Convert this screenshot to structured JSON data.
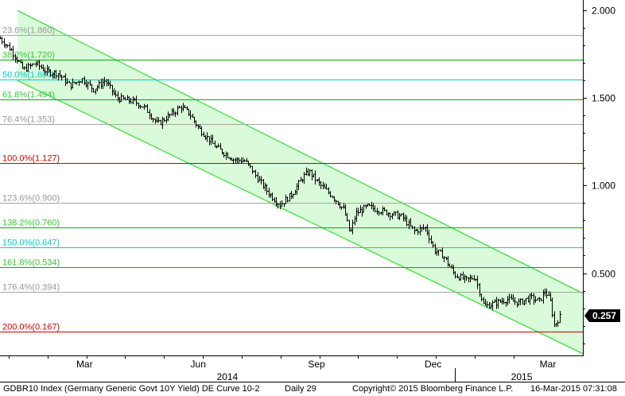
{
  "chart_data": {
    "type": "bar",
    "style": "ohlc-bars",
    "title": "",
    "xlabel": "",
    "ylabel": "",
    "ylim": [
      0.03,
      2.06
    ],
    "x_range": [
      0,
      1.0
    ],
    "y_ticks": [
      {
        "value": 2.0,
        "label": "2.000"
      },
      {
        "value": 1.5,
        "label": "1.500"
      },
      {
        "value": 1.0,
        "label": "1.000"
      },
      {
        "value": 0.5,
        "label": "0.500"
      }
    ],
    "last_price": {
      "value": 0.257,
      "label": "0.257"
    },
    "x_month_labels": [
      {
        "label": "Mar",
        "t": 0.145
      },
      {
        "label": "Jun",
        "t": 0.34
      },
      {
        "label": "Sep",
        "t": 0.543
      },
      {
        "label": "Dec",
        "t": 0.743
      },
      {
        "label": "Mar",
        "t": 0.94
      }
    ],
    "x_year_labels": [
      {
        "label": "2014",
        "t": 0.39
      },
      {
        "label": "2015",
        "t": 0.895
      }
    ],
    "year_separator_t": 0.78,
    "fib_levels": [
      {
        "label": "23.6%(1.860)",
        "value": 1.86,
        "color": "#a6a6a6",
        "text_color": "#999999"
      },
      {
        "label": "38.2%(1.720)",
        "value": 1.72,
        "color": "#00b000",
        "text_color": "#33cc33"
      },
      {
        "label": "50.0%(1.607)",
        "value": 1.607,
        "color": "#00d0d0",
        "text_color": "#00cccc"
      },
      {
        "label": "61.8%(1.494)",
        "value": 1.494,
        "color": "#00b000",
        "text_color": "#33cc33"
      },
      {
        "label": "76.4%(1.353)",
        "value": 1.353,
        "color": "#a6a6a6",
        "text_color": "#999999"
      },
      {
        "label": "100.0%(1.127)",
        "value": 1.127,
        "color": "#cc0000",
        "text_color": "#cc0000"
      },
      {
        "label": "123.6%(0.900)",
        "value": 0.9,
        "color": "#a6a6a6",
        "text_color": "#999999"
      },
      {
        "label": "138.2%(0.760)",
        "value": 0.76,
        "color": "#00b000",
        "text_color": "#33cc33"
      },
      {
        "label": "150.0%(0.647)",
        "value": 0.647,
        "color": "#00d0d0",
        "text_color": "#00cccc"
      },
      {
        "label": "161.8%(0.534)",
        "value": 0.534,
        "color": "#00b000",
        "text_color": "#33cc33"
      },
      {
        "label": "176.4%(0.394)",
        "value": 0.394,
        "color": "#a6a6a6",
        "text_color": "#999999"
      },
      {
        "label": "200.0%(0.167)",
        "value": 0.167,
        "color": "#cc0000",
        "text_color": "#cc0000"
      }
    ],
    "channel": {
      "upper": [
        {
          "t": 0.03,
          "y": 2.0
        },
        {
          "t": 1.0,
          "y": 0.385
        }
      ],
      "lower": [
        {
          "t": 0.03,
          "y": 1.6
        },
        {
          "t": 1.0,
          "y": 0.04
        }
      ],
      "line_color": "#33dd33",
      "fill_color": "#d9fbd9"
    },
    "series_anchors": [
      {
        "t": 0.0,
        "y": 1.84
      },
      {
        "t": 0.02,
        "y": 1.77
      },
      {
        "t": 0.04,
        "y": 1.66
      },
      {
        "t": 0.06,
        "y": 1.7
      },
      {
        "t": 0.08,
        "y": 1.65
      },
      {
        "t": 0.1,
        "y": 1.64
      },
      {
        "t": 0.12,
        "y": 1.57
      },
      {
        "t": 0.14,
        "y": 1.61
      },
      {
        "t": 0.16,
        "y": 1.55
      },
      {
        "t": 0.18,
        "y": 1.6
      },
      {
        "t": 0.2,
        "y": 1.5
      },
      {
        "t": 0.23,
        "y": 1.48
      },
      {
        "t": 0.25,
        "y": 1.44
      },
      {
        "t": 0.27,
        "y": 1.35
      },
      {
        "t": 0.29,
        "y": 1.4
      },
      {
        "t": 0.31,
        "y": 1.45
      },
      {
        "t": 0.325,
        "y": 1.41
      },
      {
        "t": 0.34,
        "y": 1.33
      },
      {
        "t": 0.37,
        "y": 1.22
      },
      {
        "t": 0.4,
        "y": 1.15
      },
      {
        "t": 0.42,
        "y": 1.14
      },
      {
        "t": 0.44,
        "y": 1.05
      },
      {
        "t": 0.46,
        "y": 0.96
      },
      {
        "t": 0.48,
        "y": 0.89
      },
      {
        "t": 0.5,
        "y": 0.95
      },
      {
        "t": 0.52,
        "y": 1.05
      },
      {
        "t": 0.53,
        "y": 1.08
      },
      {
        "t": 0.55,
        "y": 1.0
      },
      {
        "t": 0.57,
        "y": 0.94
      },
      {
        "t": 0.59,
        "y": 0.86
      },
      {
        "t": 0.6,
        "y": 0.72
      },
      {
        "t": 0.61,
        "y": 0.84
      },
      {
        "t": 0.63,
        "y": 0.88
      },
      {
        "t": 0.66,
        "y": 0.85
      },
      {
        "t": 0.69,
        "y": 0.82
      },
      {
        "t": 0.71,
        "y": 0.74
      },
      {
        "t": 0.73,
        "y": 0.76
      },
      {
        "t": 0.745,
        "y": 0.63
      },
      {
        "t": 0.76,
        "y": 0.6
      },
      {
        "t": 0.78,
        "y": 0.49
      },
      {
        "t": 0.8,
        "y": 0.46
      },
      {
        "t": 0.815,
        "y": 0.48
      },
      {
        "t": 0.83,
        "y": 0.31
      },
      {
        "t": 0.85,
        "y": 0.33
      },
      {
        "t": 0.87,
        "y": 0.35
      },
      {
        "t": 0.89,
        "y": 0.33
      },
      {
        "t": 0.91,
        "y": 0.36
      },
      {
        "t": 0.925,
        "y": 0.34
      },
      {
        "t": 0.935,
        "y": 0.4
      },
      {
        "t": 0.945,
        "y": 0.33
      },
      {
        "t": 0.95,
        "y": 0.2
      },
      {
        "t": 0.96,
        "y": 0.25
      }
    ]
  },
  "footer": {
    "security": "GDBR10 Index (Germany Generic Govt 10Y Yield) DE Curve 10-2",
    "period": "Daily 29",
    "copyright": "Copyright© 2015 Bloomberg Finance L.P.",
    "timestamp": "16-Mar-2015 07:31:08"
  }
}
